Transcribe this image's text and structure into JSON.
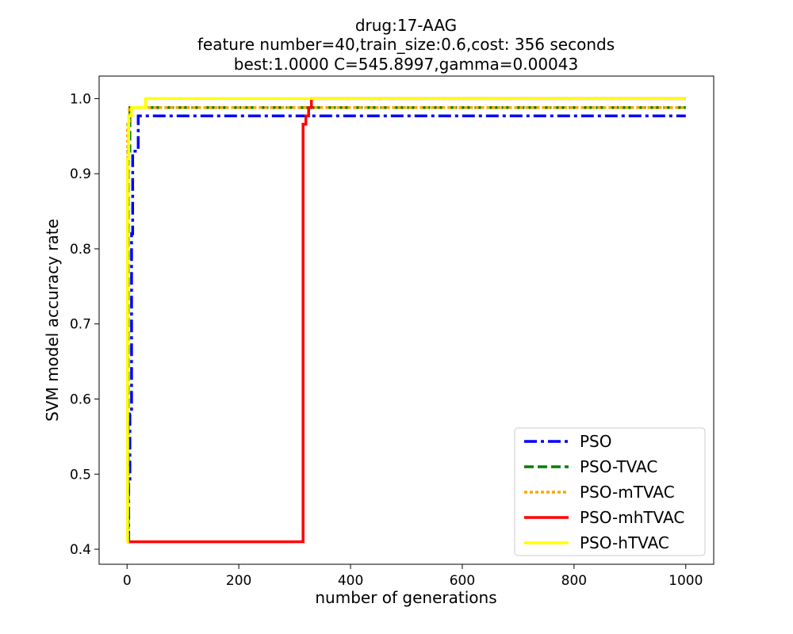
{
  "chart_data": {
    "type": "line",
    "title_lines": [
      "drug:17-AAG",
      "feature number=40,train_size:0.6,cost: 356 seconds",
      "best:1.0000  C=545.8997,gamma=0.00043"
    ],
    "xlabel": "number of generations",
    "ylabel": "SVM model accuracy rate",
    "xlim": [
      -50,
      1050
    ],
    "ylim": [
      0.38,
      1.03
    ],
    "xticks": [
      0,
      200,
      400,
      600,
      800,
      1000
    ],
    "yticks": [
      0.4,
      0.5,
      0.6,
      0.7,
      0.8,
      0.9,
      1.0
    ],
    "xtick_labels": [
      "0",
      "200",
      "400",
      "600",
      "800",
      "1000"
    ],
    "ytick_labels": [
      "0.4",
      "0.5",
      "0.6",
      "0.7",
      "0.8",
      "0.9",
      "1.0"
    ],
    "legend_position": "lower-right",
    "series": [
      {
        "name": "PSO",
        "color": "#0000ff",
        "style": "dashdot",
        "points": [
          [
            0,
            0.41
          ],
          [
            3,
            0.41
          ],
          [
            3,
            0.49
          ],
          [
            5,
            0.49
          ],
          [
            5,
            0.58
          ],
          [
            8,
            0.58
          ],
          [
            8,
            0.82
          ],
          [
            10,
            0.82
          ],
          [
            10,
            0.93
          ],
          [
            20,
            0.93
          ],
          [
            20,
            0.977
          ],
          [
            1000,
            0.977
          ]
        ]
      },
      {
        "name": "PSO-TVAC",
        "color": "#008000",
        "style": "dashed",
        "points": [
          [
            0,
            0.41
          ],
          [
            2,
            0.41
          ],
          [
            2,
            0.93
          ],
          [
            5,
            0.93
          ],
          [
            5,
            0.988
          ],
          [
            1000,
            0.988
          ]
        ]
      },
      {
        "name": "PSO-mTVAC",
        "color": "#ffa500",
        "style": "dotted",
        "points": [
          [
            0,
            0.41
          ],
          [
            1,
            0.41
          ],
          [
            1,
            0.97
          ],
          [
            4,
            0.97
          ],
          [
            4,
            0.988
          ],
          [
            1000,
            0.988
          ]
        ]
      },
      {
        "name": "PSO-mhTVAC",
        "color": "#ff0000",
        "style": "solid",
        "points": [
          [
            0,
            0.41
          ],
          [
            315,
            0.41
          ],
          [
            315,
            0.966
          ],
          [
            320,
            0.966
          ],
          [
            320,
            0.977
          ],
          [
            325,
            0.977
          ],
          [
            325,
            0.988
          ],
          [
            330,
            0.988
          ],
          [
            330,
            1.0
          ],
          [
            1000,
            1.0
          ]
        ]
      },
      {
        "name": "PSO-hTVAC",
        "color": "#ffff00",
        "style": "solid",
        "points": [
          [
            0,
            0.41
          ],
          [
            1,
            0.41
          ],
          [
            1,
            0.92
          ],
          [
            3,
            0.92
          ],
          [
            3,
            0.977
          ],
          [
            8,
            0.977
          ],
          [
            8,
            0.988
          ],
          [
            33,
            0.988
          ],
          [
            33,
            1.0
          ],
          [
            1000,
            1.0
          ]
        ]
      }
    ]
  }
}
